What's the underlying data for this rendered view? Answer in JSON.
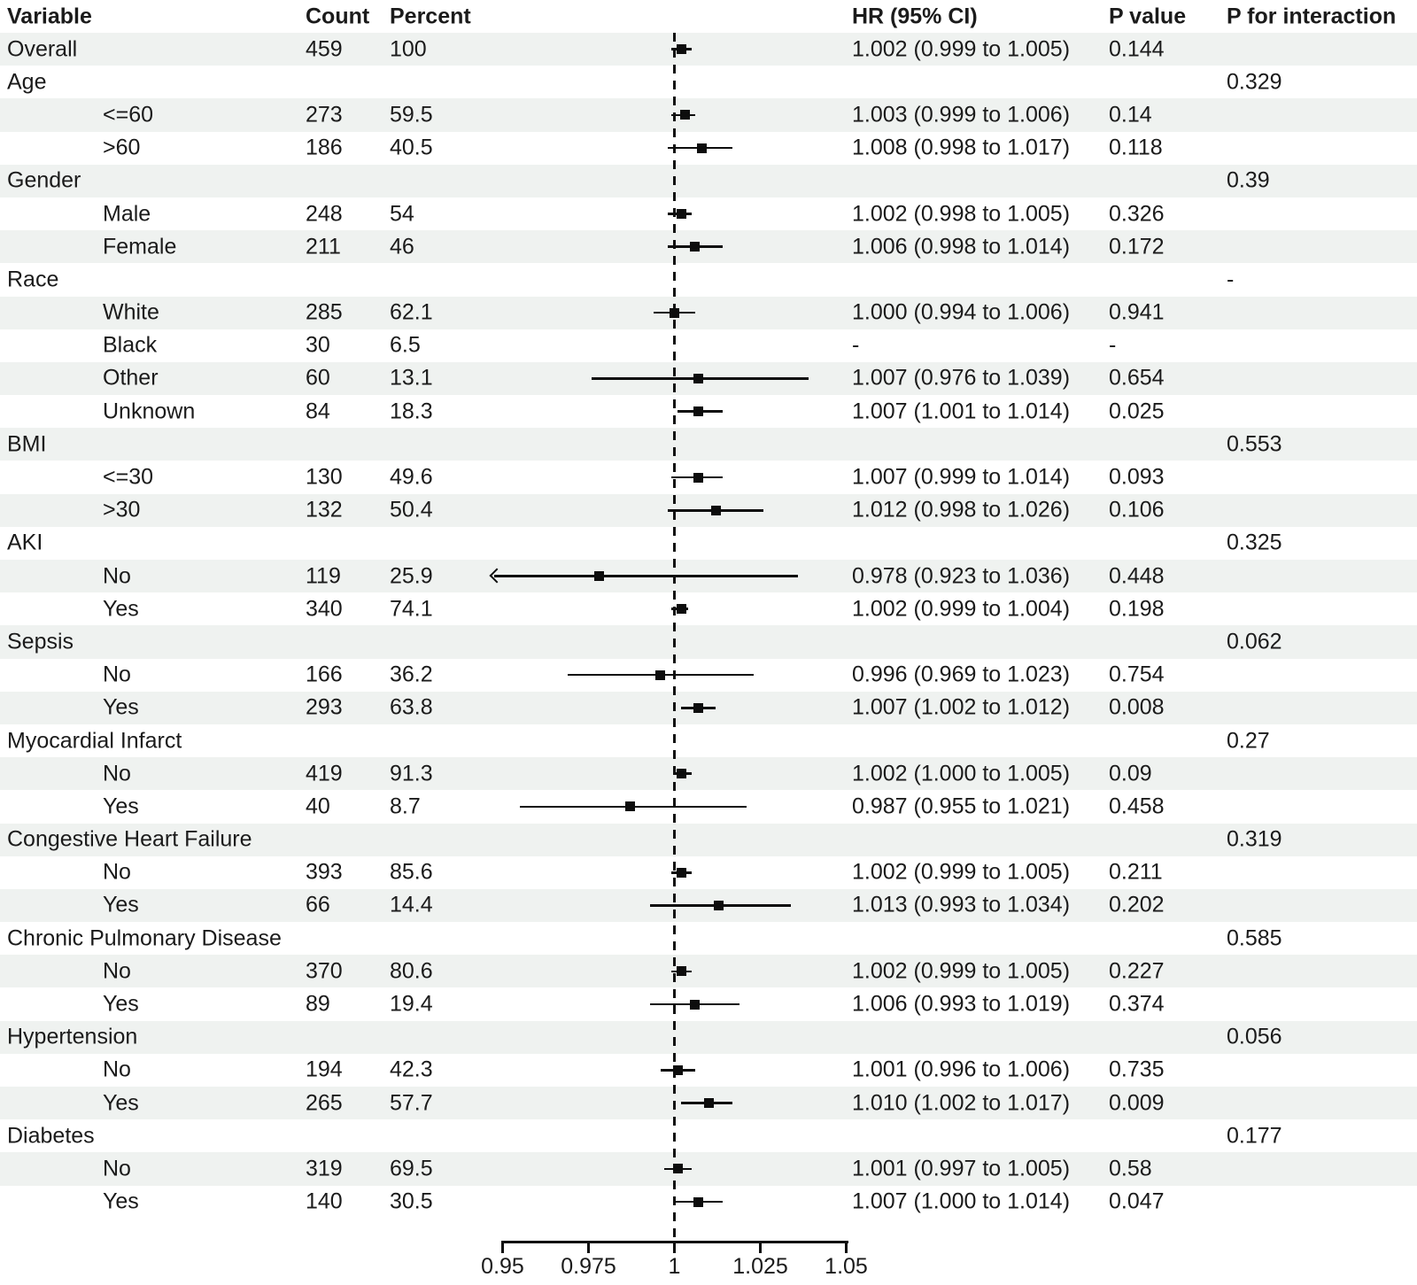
{
  "chart_data": {
    "type": "forest",
    "title": "",
    "columns": [
      "Variable",
      "Count",
      "Percent",
      "HR (95% CI)",
      "P value",
      "P for interaction"
    ],
    "axis": {
      "ticks": [
        0.95,
        0.975,
        1,
        1.025,
        1.05
      ],
      "tick_labels": [
        "0.95",
        "0.975",
        "1",
        "1.025",
        "1.05"
      ],
      "xmin": 0.95,
      "xmax": 1.05,
      "reference_line": 1
    },
    "rows": [
      {
        "label": "Overall",
        "indent": 0,
        "count": "459",
        "percent": "100",
        "hr": "1.002 (0.999 to 1.005)",
        "p": "0.144",
        "pint": "",
        "est": 1.002,
        "lo": 0.999,
        "hi": 1.005
      },
      {
        "label": "Age",
        "indent": 0,
        "count": "",
        "percent": "",
        "hr": "",
        "p": "",
        "pint": "0.329"
      },
      {
        "label": "<=60",
        "indent": 1,
        "count": "273",
        "percent": "59.5",
        "hr": "1.003 (0.999 to 1.006)",
        "p": "0.14",
        "pint": "",
        "est": 1.003,
        "lo": 0.999,
        "hi": 1.006
      },
      {
        "label": ">60",
        "indent": 1,
        "count": "186",
        "percent": "40.5",
        "hr": "1.008 (0.998 to 1.017)",
        "p": "0.118",
        "pint": "",
        "est": 1.008,
        "lo": 0.998,
        "hi": 1.017
      },
      {
        "label": "Gender",
        "indent": 0,
        "count": "",
        "percent": "",
        "hr": "",
        "p": "",
        "pint": "0.39"
      },
      {
        "label": "Male",
        "indent": 1,
        "count": "248",
        "percent": "54",
        "hr": "1.002 (0.998 to 1.005)",
        "p": "0.326",
        "pint": "",
        "est": 1.002,
        "lo": 0.998,
        "hi": 1.005
      },
      {
        "label": "Female",
        "indent": 1,
        "count": "211",
        "percent": "46",
        "hr": "1.006 (0.998 to 1.014)",
        "p": "0.172",
        "pint": "",
        "est": 1.006,
        "lo": 0.998,
        "hi": 1.014
      },
      {
        "label": "Race",
        "indent": 0,
        "count": "",
        "percent": "",
        "hr": "",
        "p": "",
        "pint": "-"
      },
      {
        "label": "White",
        "indent": 1,
        "count": "285",
        "percent": "62.1",
        "hr": "1.000 (0.994 to 1.006)",
        "p": "0.941",
        "pint": "",
        "est": 1.0,
        "lo": 0.994,
        "hi": 1.006
      },
      {
        "label": "Black",
        "indent": 1,
        "count": "30",
        "percent": "6.5",
        "hr": "-",
        "p": "-",
        "pint": ""
      },
      {
        "label": "Other",
        "indent": 1,
        "count": "60",
        "percent": "13.1",
        "hr": "1.007 (0.976 to 1.039)",
        "p": "0.654",
        "pint": "",
        "est": 1.007,
        "lo": 0.976,
        "hi": 1.039
      },
      {
        "label": "Unknown",
        "indent": 1,
        "count": "84",
        "percent": "18.3",
        "hr": "1.007 (1.001 to 1.014)",
        "p": "0.025",
        "pint": "",
        "est": 1.007,
        "lo": 1.001,
        "hi": 1.014
      },
      {
        "label": "BMI",
        "indent": 0,
        "count": "",
        "percent": "",
        "hr": "",
        "p": "",
        "pint": "0.553"
      },
      {
        "label": "<=30",
        "indent": 1,
        "count": "130",
        "percent": "49.6",
        "hr": "1.007 (0.999 to 1.014)",
        "p": "0.093",
        "pint": "",
        "est": 1.007,
        "lo": 0.999,
        "hi": 1.014
      },
      {
        "label": ">30",
        "indent": 1,
        "count": "132",
        "percent": "50.4",
        "hr": "1.012 (0.998 to 1.026)",
        "p": "0.106",
        "pint": "",
        "est": 1.012,
        "lo": 0.998,
        "hi": 1.026
      },
      {
        "label": "AKI",
        "indent": 0,
        "count": "",
        "percent": "",
        "hr": "",
        "p": "",
        "pint": "0.325"
      },
      {
        "label": "No",
        "indent": 1,
        "count": "119",
        "percent": "25.9",
        "hr": "0.978 (0.923 to 1.036)",
        "p": "0.448",
        "pint": "",
        "est": 0.978,
        "lo": 0.923,
        "hi": 1.036,
        "clip_lo": true
      },
      {
        "label": "Yes",
        "indent": 1,
        "count": "340",
        "percent": "74.1",
        "hr": "1.002 (0.999 to 1.004)",
        "p": "0.198",
        "pint": "",
        "est": 1.002,
        "lo": 0.999,
        "hi": 1.004
      },
      {
        "label": "Sepsis",
        "indent": 0,
        "count": "",
        "percent": "",
        "hr": "",
        "p": "",
        "pint": "0.062"
      },
      {
        "label": "No",
        "indent": 1,
        "count": "166",
        "percent": "36.2",
        "hr": "0.996 (0.969 to 1.023)",
        "p": "0.754",
        "pint": "",
        "est": 0.996,
        "lo": 0.969,
        "hi": 1.023
      },
      {
        "label": "Yes",
        "indent": 1,
        "count": "293",
        "percent": "63.8",
        "hr": "1.007 (1.002 to 1.012)",
        "p": "0.008",
        "pint": "",
        "est": 1.007,
        "lo": 1.002,
        "hi": 1.012
      },
      {
        "label": "Myocardial Infarct",
        "indent": 0,
        "count": "",
        "percent": "",
        "hr": "",
        "p": "",
        "pint": "0.27"
      },
      {
        "label": "No",
        "indent": 1,
        "count": "419",
        "percent": "91.3",
        "hr": "1.002 (1.000 to 1.005)",
        "p": "0.09",
        "pint": "",
        "est": 1.002,
        "lo": 1.0,
        "hi": 1.005
      },
      {
        "label": "Yes",
        "indent": 1,
        "count": "40",
        "percent": "8.7",
        "hr": "0.987 (0.955 to 1.021)",
        "p": "0.458",
        "pint": "",
        "est": 0.987,
        "lo": 0.955,
        "hi": 1.021
      },
      {
        "label": "Congestive Heart Failure",
        "indent": 0,
        "count": "",
        "percent": "",
        "hr": "",
        "p": "",
        "pint": "0.319"
      },
      {
        "label": "No",
        "indent": 1,
        "count": "393",
        "percent": "85.6",
        "hr": "1.002 (0.999 to 1.005)",
        "p": "0.211",
        "pint": "",
        "est": 1.002,
        "lo": 0.999,
        "hi": 1.005
      },
      {
        "label": "Yes",
        "indent": 1,
        "count": "66",
        "percent": "14.4",
        "hr": "1.013 (0.993 to 1.034)",
        "p": "0.202",
        "pint": "",
        "est": 1.013,
        "lo": 0.993,
        "hi": 1.034
      },
      {
        "label": "Chronic Pulmonary Disease",
        "indent": 0,
        "count": "",
        "percent": "",
        "hr": "",
        "p": "",
        "pint": "0.585"
      },
      {
        "label": "No",
        "indent": 1,
        "count": "370",
        "percent": "80.6",
        "hr": "1.002 (0.999 to 1.005)",
        "p": "0.227",
        "pint": "",
        "est": 1.002,
        "lo": 0.999,
        "hi": 1.005
      },
      {
        "label": "Yes",
        "indent": 1,
        "count": "89",
        "percent": "19.4",
        "hr": "1.006 (0.993 to 1.019)",
        "p": "0.374",
        "pint": "",
        "est": 1.006,
        "lo": 0.993,
        "hi": 1.019
      },
      {
        "label": "Hypertension",
        "indent": 0,
        "count": "",
        "percent": "",
        "hr": "",
        "p": "",
        "pint": "0.056"
      },
      {
        "label": "No",
        "indent": 1,
        "count": "194",
        "percent": "42.3",
        "hr": "1.001 (0.996 to 1.006)",
        "p": "0.735",
        "pint": "",
        "est": 1.001,
        "lo": 0.996,
        "hi": 1.006
      },
      {
        "label": "Yes",
        "indent": 1,
        "count": "265",
        "percent": "57.7",
        "hr": "1.010 (1.002 to 1.017)",
        "p": "0.009",
        "pint": "",
        "est": 1.01,
        "lo": 1.002,
        "hi": 1.017
      },
      {
        "label": "Diabetes",
        "indent": 0,
        "count": "",
        "percent": "",
        "hr": "",
        "p": "",
        "pint": "0.177"
      },
      {
        "label": "No",
        "indent": 1,
        "count": "319",
        "percent": "69.5",
        "hr": "1.001 (0.997 to 1.005)",
        "p": "0.58",
        "pint": "",
        "est": 1.001,
        "lo": 0.997,
        "hi": 1.005
      },
      {
        "label": "Yes",
        "indent": 1,
        "count": "140",
        "percent": "30.5",
        "hr": "1.007 (1.000 to 1.014)",
        "p": "0.047",
        "pint": "",
        "est": 1.007,
        "lo": 1.0,
        "hi": 1.014
      }
    ]
  },
  "colors": {
    "row_shade": "#eff2f0",
    "text": "#1b1b1b",
    "marker": "#0d0d0d",
    "reference_line": "#111111"
  }
}
